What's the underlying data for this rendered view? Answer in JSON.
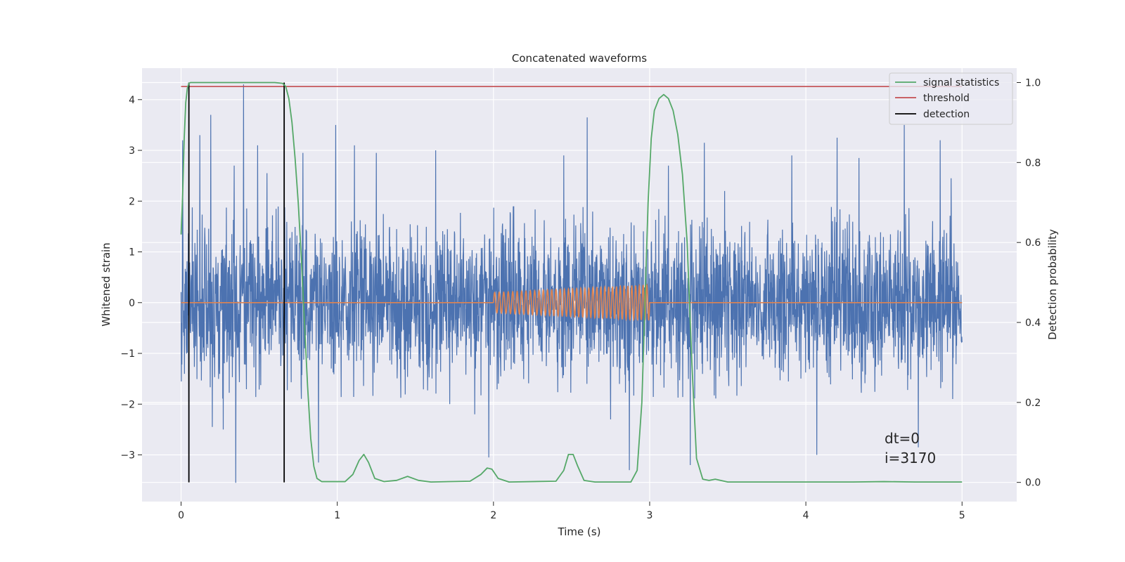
{
  "chart_data": {
    "type": "line",
    "title": "Concatenated waveforms",
    "xlabel": "Time (s)",
    "ylabel_left": "Whitened strain",
    "ylabel_right": "Detection probability",
    "xlim": [
      -0.25,
      5.35
    ],
    "ylim_left": [
      -3.92,
      4.62
    ],
    "ylim_right": [
      -0.048,
      1.036
    ],
    "x_ticks": [
      0,
      1,
      2,
      3,
      4,
      5
    ],
    "x_tick_labels": [
      "0",
      "1",
      "2",
      "3",
      "4",
      "5"
    ],
    "y_left_ticks": [
      -3,
      -2,
      -1,
      0,
      1,
      2,
      3,
      4
    ],
    "y_left_tick_labels": [
      "−3",
      "−2",
      "−1",
      "0",
      "1",
      "2",
      "3",
      "4"
    ],
    "y_right_ticks": [
      0.0,
      0.2,
      0.4,
      0.6,
      0.8,
      1.0
    ],
    "y_right_tick_labels": [
      "0.0",
      "0.2",
      "0.4",
      "0.6",
      "0.8",
      "1.0"
    ],
    "grid": true,
    "legend_position": "top-right",
    "colors": {
      "plot_bg": "#eaeaf2",
      "grid": "#ffffff",
      "noise": "#4c72b0",
      "injection": "#dd8452",
      "signal_statistics": "#55a868",
      "threshold": "#c44e52",
      "detection": "#000000"
    },
    "series": [
      {
        "name": "whitened strain (noise)",
        "axis": "left",
        "color": "#4c72b0",
        "x_range": [
          0,
          5
        ],
        "envelope_typical": [
          -1.6,
          1.6
        ],
        "spikes": [
          {
            "x": 0.01,
            "y": 3.2
          },
          {
            "x": 0.05,
            "y": -2.25
          },
          {
            "x": 0.12,
            "y": 3.3
          },
          {
            "x": 0.19,
            "y": 3.7
          },
          {
            "x": 0.2,
            "y": -2.45
          },
          {
            "x": 0.27,
            "y": -2.5
          },
          {
            "x": 0.34,
            "y": 2.7
          },
          {
            "x": 0.35,
            "y": -3.55
          },
          {
            "x": 0.4,
            "y": 4.3
          },
          {
            "x": 0.49,
            "y": 3.1
          },
          {
            "x": 0.55,
            "y": 2.55
          },
          {
            "x": 0.78,
            "y": 2.95
          },
          {
            "x": 0.88,
            "y": -3.15
          },
          {
            "x": 0.99,
            "y": 3.5
          },
          {
            "x": 1.11,
            "y": 3.1
          },
          {
            "x": 1.25,
            "y": 2.95
          },
          {
            "x": 1.63,
            "y": 3.0
          },
          {
            "x": 1.72,
            "y": -2.0
          },
          {
            "x": 1.88,
            "y": -2.2
          },
          {
            "x": 1.97,
            "y": -3.05
          },
          {
            "x": 2.45,
            "y": 2.9
          },
          {
            "x": 2.6,
            "y": 3.65
          },
          {
            "x": 2.75,
            "y": -2.3
          },
          {
            "x": 2.87,
            "y": -3.3
          },
          {
            "x": 3.12,
            "y": 2.7
          },
          {
            "x": 3.26,
            "y": -3.2
          },
          {
            "x": 3.35,
            "y": 3.15
          },
          {
            "x": 3.48,
            "y": 2.2
          },
          {
            "x": 3.91,
            "y": 2.9
          },
          {
            "x": 4.07,
            "y": -3.0
          },
          {
            "x": 4.2,
            "y": 3.25
          },
          {
            "x": 4.34,
            "y": 2.85
          },
          {
            "x": 4.63,
            "y": 3.5
          },
          {
            "x": 4.72,
            "y": -2.85
          },
          {
            "x": 4.86,
            "y": 3.2
          },
          {
            "x": 4.94,
            "y": -1.9
          },
          {
            "x": 4.93,
            "y": 2.45
          }
        ]
      },
      {
        "name": "injected waveform",
        "axis": "left",
        "color": "#dd8452",
        "x_range": [
          0,
          5
        ],
        "chirp_start": 2.0,
        "chirp_end": 3.0,
        "amplitude_start": 0.2,
        "amplitude_end": 0.35
      },
      {
        "name": "signal statistics",
        "axis": "right",
        "color": "#55a868",
        "x": [
          0.0,
          0.01,
          0.02,
          0.03,
          0.04,
          0.05,
          0.06,
          0.08,
          0.1,
          0.2,
          0.3,
          0.4,
          0.5,
          0.6,
          0.65,
          0.67,
          0.69,
          0.71,
          0.73,
          0.75,
          0.77,
          0.79,
          0.81,
          0.83,
          0.85,
          0.87,
          0.9,
          1.05,
          1.1,
          1.14,
          1.17,
          1.2,
          1.24,
          1.3,
          1.38,
          1.45,
          1.52,
          1.6,
          1.85,
          1.92,
          1.96,
          1.99,
          2.03,
          2.1,
          2.4,
          2.45,
          2.48,
          2.51,
          2.54,
          2.58,
          2.65,
          2.88,
          2.92,
          2.95,
          2.97,
          2.99,
          3.01,
          3.03,
          3.06,
          3.09,
          3.12,
          3.15,
          3.18,
          3.21,
          3.24,
          3.27,
          3.3,
          3.34,
          3.38,
          3.42,
          3.5,
          4.3,
          4.5,
          4.7,
          5.0
        ],
        "y": [
          0.62,
          0.72,
          0.86,
          0.95,
          0.985,
          0.998,
          1.0,
          1.0,
          1.0,
          1.0,
          1.0,
          1.0,
          1.0,
          1.0,
          0.998,
          0.99,
          0.96,
          0.9,
          0.81,
          0.7,
          0.56,
          0.4,
          0.24,
          0.11,
          0.04,
          0.01,
          0.002,
          0.002,
          0.02,
          0.055,
          0.07,
          0.05,
          0.01,
          0.002,
          0.005,
          0.015,
          0.005,
          0.001,
          0.003,
          0.02,
          0.036,
          0.033,
          0.01,
          0.001,
          0.003,
          0.03,
          0.07,
          0.07,
          0.04,
          0.005,
          0.001,
          0.001,
          0.03,
          0.2,
          0.45,
          0.7,
          0.86,
          0.93,
          0.96,
          0.97,
          0.96,
          0.93,
          0.87,
          0.77,
          0.6,
          0.3,
          0.06,
          0.008,
          0.005,
          0.008,
          0.001,
          0.001,
          0.002,
          0.001,
          0.001
        ]
      },
      {
        "name": "threshold",
        "axis": "right",
        "color": "#c44e52",
        "x": [
          0,
          5
        ],
        "y": [
          0.99,
          0.99
        ]
      },
      {
        "name": "detection",
        "axis": "right",
        "color": "#000000",
        "x": [
          0.05,
          0.66
        ],
        "y_range": [
          0.0,
          1.0
        ]
      }
    ],
    "legend": [
      "signal statistics",
      "threshold",
      "detection"
    ],
    "annotations": [
      "dt=0",
      "i=3170"
    ]
  }
}
